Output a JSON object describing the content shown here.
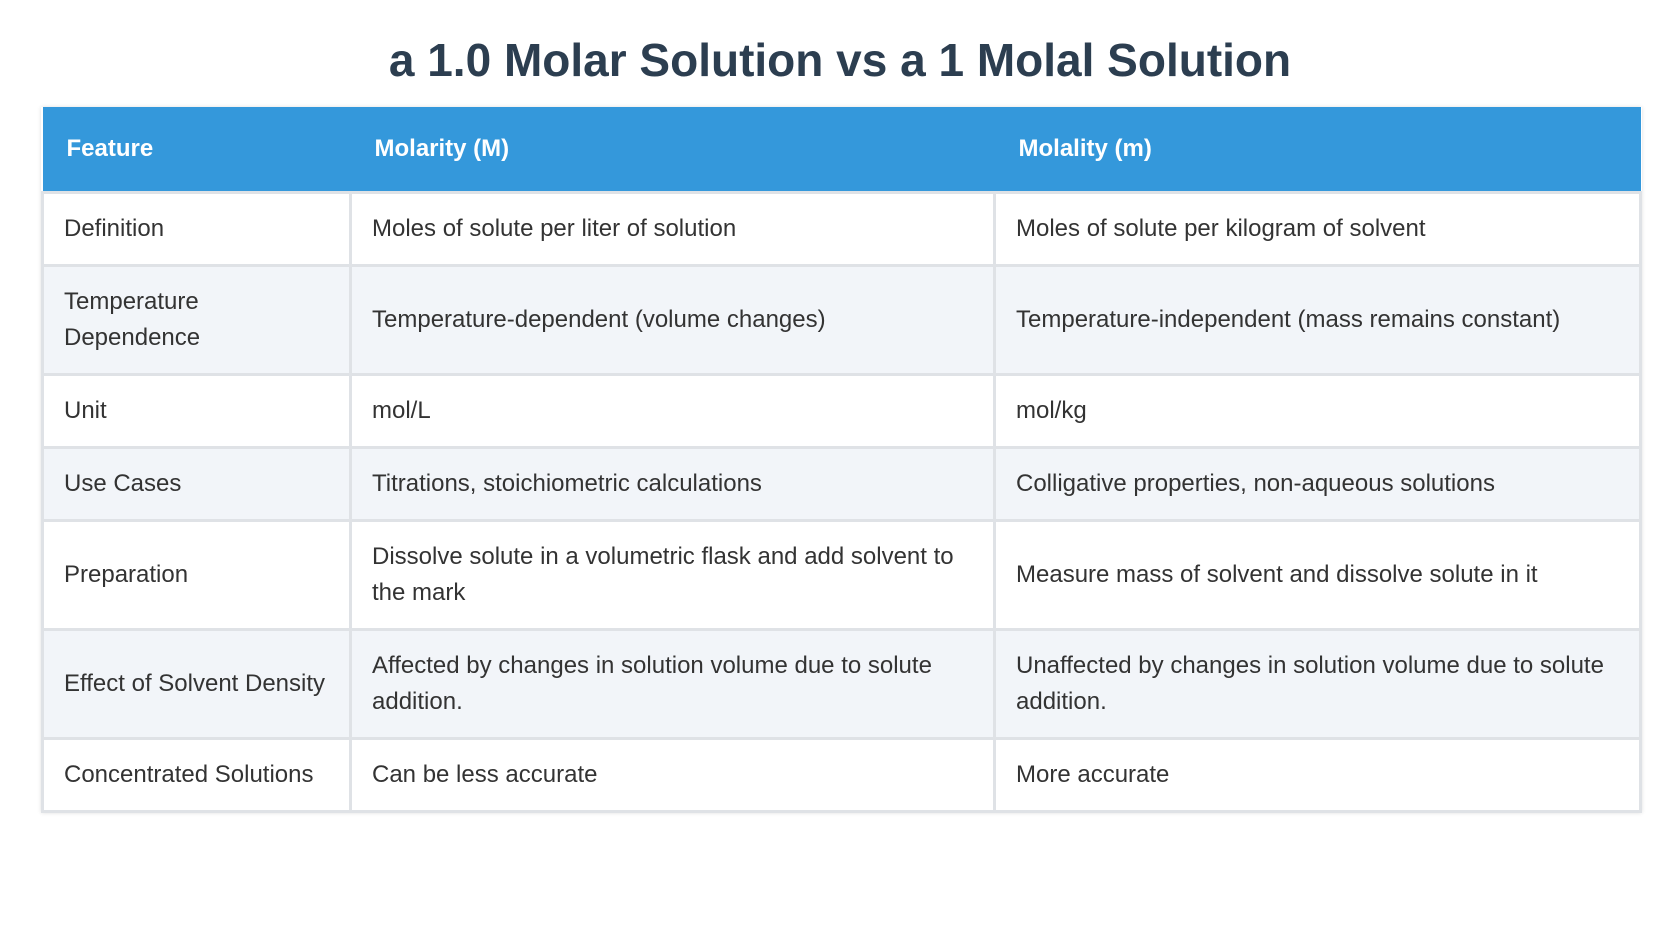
{
  "header": {
    "title": "a 1.0 Molar Solution vs a 1 Molal Solution"
  },
  "table": {
    "columns": [
      "Feature",
      "Molarity (M)",
      "Molality (m)"
    ],
    "rows": [
      [
        "Definition",
        "Moles of solute per liter of solution",
        "Moles of solute per kilogram of solvent"
      ],
      [
        "Temperature Dependence",
        "Temperature-dependent (volume changes)",
        "Temperature-independent (mass remains constant)"
      ],
      [
        "Unit",
        "mol/L",
        "mol/kg"
      ],
      [
        "Use Cases",
        "Titrations, stoichiometric calculations",
        "Colligative properties, non-aqueous solutions"
      ],
      [
        "Preparation",
        "Dissolve solute in a volumetric flask and add solvent to the mark",
        "Measure mass of solvent and dissolve solute in it"
      ],
      [
        "Effect of Solvent Density",
        "Affected by changes in solution volume due to solute addition.",
        "Unaffected by changes in solution volume due to solute addition."
      ],
      [
        "Concentrated Solutions",
        "Can be less accurate",
        "More accurate"
      ]
    ]
  }
}
